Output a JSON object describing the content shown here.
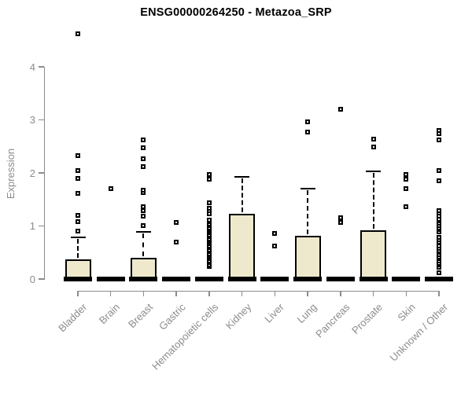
{
  "title": "ENSG00000264250 - Metazoa_SRP",
  "chart_data": {
    "type": "boxplot",
    "title": "ENSG00000264250 - Metazoa_SRP",
    "xlabel": "",
    "ylabel": "Expression",
    "ylim": [
      0,
      4.7
    ],
    "yticks": [
      0,
      1,
      2,
      3,
      4
    ],
    "grid": false,
    "axis_color": "#8C8C8C",
    "box_fill": "#EEE8CD",
    "box_border": "#000000",
    "categories": [
      "Bladder",
      "Brain",
      "Breast",
      "Gastric",
      "Hematopoietic cells",
      "Kidney",
      "Liver",
      "Lung",
      "Pancreas",
      "Prostate",
      "Skin",
      "Unknown / Other"
    ],
    "series": [
      {
        "label": "Bladder",
        "q1": 0,
        "median": 0,
        "q3": 0.37,
        "whisker_low": 0,
        "whisker_high": 0.79,
        "outliers": [
          0.9,
          1.08,
          1.2,
          1.62,
          1.9,
          2.04,
          2.33,
          4.62
        ]
      },
      {
        "label": "Brain",
        "q1": 0,
        "median": 0,
        "q3": 0,
        "whisker_low": 0,
        "whisker_high": 0,
        "outliers": [
          1.7
        ]
      },
      {
        "label": "Breast",
        "q1": 0,
        "median": 0,
        "q3": 0.4,
        "whisker_low": 0,
        "whisker_high": 0.89,
        "outliers": [
          1.01,
          1.19,
          1.29,
          1.36,
          1.63,
          1.68,
          2.12,
          2.27,
          2.47,
          2.62
        ]
      },
      {
        "label": "Gastric",
        "q1": 0,
        "median": 0,
        "q3": 0,
        "whisker_low": 0,
        "whisker_high": 0,
        "outliers": [
          0.7,
          1.07
        ]
      },
      {
        "label": "Hematopoietic cells",
        "q1": 0,
        "median": 0,
        "q3": 0,
        "whisker_low": 0,
        "whisker_high": 0,
        "outliers": [
          0.24,
          0.27,
          0.31,
          0.34,
          0.38,
          0.41,
          0.45,
          0.48,
          0.52,
          0.55,
          0.59,
          0.62,
          0.66,
          0.69,
          0.73,
          0.76,
          0.8,
          0.83,
          0.87,
          0.9,
          0.94,
          0.97,
          1.01,
          1.04,
          1.08,
          1.11,
          1.23,
          1.29,
          1.33,
          1.43,
          1.88,
          1.97
        ]
      },
      {
        "label": "Kidney",
        "q1": 0,
        "median": 0,
        "q3": 1.23,
        "whisker_low": 0,
        "whisker_high": 1.93,
        "outliers": []
      },
      {
        "label": "Liver",
        "q1": 0,
        "median": 0,
        "q3": 0,
        "whisker_low": 0,
        "whisker_high": 0,
        "outliers": [
          0.62,
          0.86
        ]
      },
      {
        "label": "Lung",
        "q1": 0,
        "median": 0,
        "q3": 0.81,
        "whisker_low": 0,
        "whisker_high": 1.7,
        "outliers": [
          2.77,
          2.96
        ]
      },
      {
        "label": "Pancreas",
        "q1": 0,
        "median": 0,
        "q3": 0,
        "whisker_low": 0,
        "whisker_high": 0,
        "outliers": [
          1.07,
          1.16,
          3.2
        ]
      },
      {
        "label": "Prostate",
        "q1": 0,
        "median": 0,
        "q3": 0.92,
        "whisker_low": 0,
        "whisker_high": 2.03,
        "outliers": [
          2.49,
          2.64
        ]
      },
      {
        "label": "Skin",
        "q1": 0,
        "median": 0,
        "q3": 0,
        "whisker_low": 0,
        "whisker_high": 0,
        "outliers": [
          1.36,
          1.7,
          1.88,
          1.97
        ]
      },
      {
        "label": "Unknown / Other",
        "q1": 0,
        "median": 0,
        "q3": 0,
        "whisker_low": 0,
        "whisker_high": 0,
        "outliers": [
          0.12,
          0.22,
          0.26,
          0.3,
          0.34,
          0.38,
          0.42,
          0.46,
          0.5,
          0.54,
          0.58,
          0.62,
          0.7,
          0.74,
          0.78,
          0.89,
          0.93,
          0.97,
          1.01,
          1.05,
          1.09,
          1.13,
          1.19,
          1.25,
          1.29,
          1.85,
          2.04,
          2.62,
          2.74,
          2.8
        ]
      }
    ]
  }
}
